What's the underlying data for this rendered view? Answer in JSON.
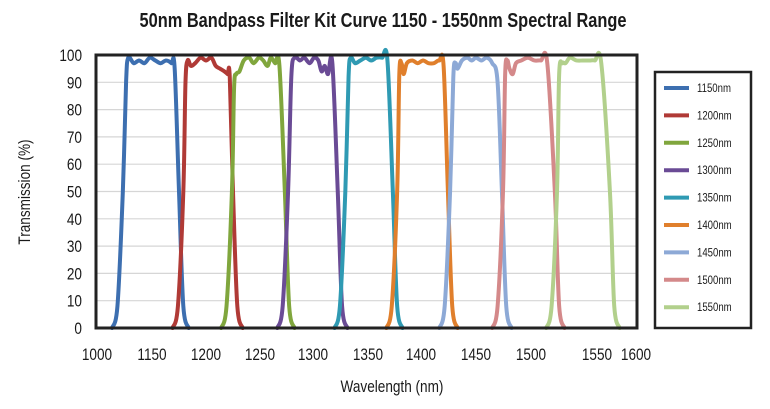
{
  "chart_data": {
    "type": "line",
    "title": "50nm Bandpass Filter Kit Curve 1150 - 1550nm Spectral Range",
    "xlabel": "Wavelength (nm)",
    "ylabel": "Transmission (%)",
    "xlim": [
      1000,
      1600
    ],
    "ylim": [
      0,
      100
    ],
    "x_tick_labels": [
      "1000",
      "1150",
      "1200",
      "1250",
      "1300",
      "1350",
      "1400",
      "1450",
      "1500",
      "1550",
      "1600"
    ],
    "y_tick_labels": [
      "0",
      "10",
      "20",
      "30",
      "40",
      "50",
      "60",
      "70",
      "80",
      "90",
      "100"
    ],
    "grid": "horizontal",
    "legend_position": "right",
    "series": [
      {
        "name": "1150nm",
        "color": "#3d6fb0",
        "points": [
          [
            1113,
            0
          ],
          [
            1118,
            8
          ],
          [
            1123,
            50
          ],
          [
            1126,
            90
          ],
          [
            1128,
            99
          ],
          [
            1133,
            97
          ],
          [
            1138,
            98
          ],
          [
            1143,
            97
          ],
          [
            1148,
            99
          ],
          [
            1153,
            98
          ],
          [
            1158,
            97
          ],
          [
            1163,
            98
          ],
          [
            1168,
            97
          ],
          [
            1171,
            95
          ],
          [
            1175,
            50
          ],
          [
            1179,
            8
          ],
          [
            1184,
            0
          ]
        ]
      },
      {
        "name": "1200nm",
        "color": "#b03a36",
        "points": [
          [
            1169,
            0
          ],
          [
            1174,
            8
          ],
          [
            1179,
            50
          ],
          [
            1181,
            90
          ],
          [
            1183,
            98
          ],
          [
            1186,
            96
          ],
          [
            1190,
            97
          ],
          [
            1195,
            99
          ],
          [
            1200,
            98
          ],
          [
            1205,
            99
          ],
          [
            1209,
            96
          ],
          [
            1213,
            95
          ],
          [
            1217,
            94
          ],
          [
            1220,
            93
          ],
          [
            1222,
            92
          ],
          [
            1225,
            50
          ],
          [
            1229,
            8
          ],
          [
            1234,
            0
          ]
        ]
      },
      {
        "name": "1250nm",
        "color": "#80a63d",
        "points": [
          [
            1214,
            0
          ],
          [
            1219,
            8
          ],
          [
            1224,
            50
          ],
          [
            1226,
            88
          ],
          [
            1228,
            93
          ],
          [
            1231,
            94
          ],
          [
            1235,
            98
          ],
          [
            1240,
            99
          ],
          [
            1244,
            97
          ],
          [
            1249,
            99
          ],
          [
            1253,
            98
          ],
          [
            1257,
            96
          ],
          [
            1260,
            99
          ],
          [
            1264,
            97
          ],
          [
            1268,
            96
          ],
          [
            1273,
            50
          ],
          [
            1277,
            8
          ],
          [
            1282,
            0
          ]
        ]
      },
      {
        "name": "1300nm",
        "color": "#6a4b95",
        "points": [
          [
            1266,
            0
          ],
          [
            1271,
            8
          ],
          [
            1276,
            50
          ],
          [
            1279,
            92
          ],
          [
            1282,
            99
          ],
          [
            1287,
            98
          ],
          [
            1291,
            99
          ],
          [
            1296,
            97
          ],
          [
            1300,
            99
          ],
          [
            1304,
            98
          ],
          [
            1307,
            94
          ],
          [
            1310,
            96
          ],
          [
            1313,
            93
          ],
          [
            1317,
            97
          ],
          [
            1322,
            50
          ],
          [
            1326,
            8
          ],
          [
            1331,
            0
          ]
        ]
      },
      {
        "name": "1350nm",
        "color": "#2f9ab3",
        "points": [
          [
            1319,
            0
          ],
          [
            1324,
            8
          ],
          [
            1329,
            50
          ],
          [
            1332,
            92
          ],
          [
            1334,
            99
          ],
          [
            1338,
            97
          ],
          [
            1343,
            98
          ],
          [
            1348,
            99
          ],
          [
            1353,
            98
          ],
          [
            1358,
            99
          ],
          [
            1363,
            99
          ],
          [
            1368,
            98
          ],
          [
            1373,
            50
          ],
          [
            1377,
            8
          ],
          [
            1382,
            0
          ]
        ]
      },
      {
        "name": "1400nm",
        "color": "#e07f2c",
        "points": [
          [
            1367,
            0
          ],
          [
            1372,
            8
          ],
          [
            1377,
            50
          ],
          [
            1379,
            93
          ],
          [
            1381,
            97
          ],
          [
            1383,
            93
          ],
          [
            1386,
            97
          ],
          [
            1391,
            98
          ],
          [
            1396,
            97
          ],
          [
            1401,
            98
          ],
          [
            1406,
            97
          ],
          [
            1411,
            97
          ],
          [
            1416,
            98
          ],
          [
            1420,
            96
          ],
          [
            1424,
            50
          ],
          [
            1428,
            8
          ],
          [
            1433,
            0
          ]
        ]
      },
      {
        "name": "1450nm",
        "color": "#8da9d6",
        "points": [
          [
            1416,
            0
          ],
          [
            1421,
            8
          ],
          [
            1426,
            50
          ],
          [
            1429,
            92
          ],
          [
            1431,
            97
          ],
          [
            1433,
            95
          ],
          [
            1437,
            98
          ],
          [
            1442,
            99
          ],
          [
            1446,
            98
          ],
          [
            1450,
            99
          ],
          [
            1455,
            98
          ],
          [
            1460,
            99
          ],
          [
            1465,
            97
          ],
          [
            1470,
            90
          ],
          [
            1474,
            50
          ],
          [
            1478,
            8
          ],
          [
            1483,
            0
          ]
        ]
      },
      {
        "name": "1500nm",
        "color": "#d4898a",
        "points": [
          [
            1465,
            0
          ],
          [
            1470,
            8
          ],
          [
            1475,
            50
          ],
          [
            1477,
            93
          ],
          [
            1479,
            98
          ],
          [
            1481,
            95
          ],
          [
            1484,
            93
          ],
          [
            1487,
            97
          ],
          [
            1492,
            98
          ],
          [
            1498,
            99
          ],
          [
            1504,
            98
          ],
          [
            1510,
            98
          ],
          [
            1516,
            97
          ],
          [
            1523,
            50
          ],
          [
            1527,
            8
          ],
          [
            1532,
            0
          ]
        ]
      },
      {
        "name": "1550nm",
        "color": "#b2d08c",
        "points": [
          [
            1515,
            0
          ],
          [
            1520,
            8
          ],
          [
            1525,
            50
          ],
          [
            1527,
            93
          ],
          [
            1530,
            97
          ],
          [
            1533,
            97
          ],
          [
            1537,
            99
          ],
          [
            1543,
            98
          ],
          [
            1549,
            98
          ],
          [
            1555,
            98
          ],
          [
            1560,
            98
          ],
          [
            1566,
            97
          ],
          [
            1574,
            50
          ],
          [
            1578,
            8
          ],
          [
            1583,
            0
          ]
        ]
      }
    ]
  }
}
